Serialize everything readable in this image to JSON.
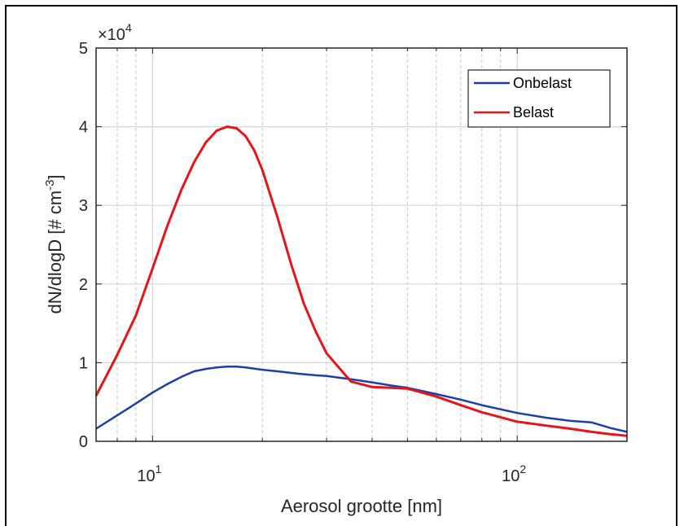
{
  "chart_data": {
    "type": "line",
    "xlabel": "Aerosol grootte [nm]",
    "ylabel": "dN/dlogD [# cm",
    "ylabel_exp": "-3",
    "ylabel_close": "]",
    "y_multiplier_base": "×10",
    "y_multiplier_exp": "4",
    "x_scale": "log",
    "xlim": [
      7,
      200
    ],
    "ylim": [
      0,
      50000
    ],
    "y_ticks": [
      0,
      10000,
      20000,
      30000,
      40000,
      50000
    ],
    "y_tick_labels": [
      "0",
      "1",
      "2",
      "3",
      "4",
      "5"
    ],
    "x_ticks": [
      10,
      100
    ],
    "x_tick_base": "10",
    "x_tick_exps": [
      "1",
      "2"
    ],
    "grid": true,
    "legend_position": "top-right",
    "series": [
      {
        "name": "Onbelast",
        "color": "#1f3fa8",
        "x": [
          7,
          8,
          9,
          10,
          11,
          12,
          13,
          14,
          15,
          16,
          17,
          18,
          20,
          22,
          25,
          28,
          30,
          35,
          40,
          45,
          50,
          60,
          70,
          80,
          100,
          120,
          140,
          160,
          180,
          200
        ],
        "y": [
          1600,
          3300,
          4800,
          6200,
          7300,
          8200,
          8900,
          9200,
          9400,
          9500,
          9500,
          9400,
          9100,
          8900,
          8600,
          8400,
          8300,
          7900,
          7500,
          7100,
          6800,
          6000,
          5300,
          4600,
          3600,
          3000,
          2600,
          2400,
          1700,
          1200
        ]
      },
      {
        "name": "Belast",
        "color": "#e8141b",
        "x": [
          7,
          8,
          9,
          10,
          11,
          12,
          13,
          14,
          15,
          16,
          17,
          18,
          19,
          20,
          22,
          24,
          26,
          28,
          30,
          35,
          40,
          45,
          50,
          60,
          70,
          80,
          100,
          120,
          140,
          160,
          180,
          200
        ],
        "y": [
          5800,
          11000,
          16000,
          22000,
          27500,
          32000,
          35500,
          38000,
          39500,
          40000,
          39800,
          38800,
          37000,
          34500,
          28500,
          22500,
          17500,
          14000,
          11200,
          7600,
          6900,
          6800,
          6700,
          5700,
          4600,
          3700,
          2500,
          2000,
          1600,
          1200,
          900,
          700
        ]
      }
    ]
  }
}
